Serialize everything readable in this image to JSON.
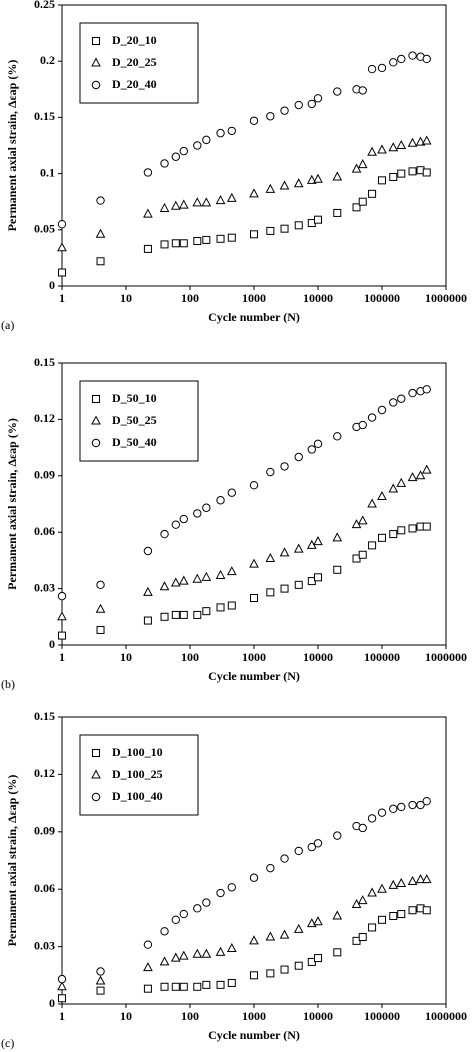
{
  "chart_data": [
    {
      "type": "scatter",
      "panel_label": "(a)",
      "x_label": "Cycle number (N)",
      "y_label": "Permanent axial strain, Δεap (%)",
      "log_x": true,
      "xlim": [
        1,
        1000000
      ],
      "xticks": [
        1,
        10,
        100,
        1000,
        10000,
        100000,
        1000000
      ],
      "ylim": [
        0,
        0.25
      ],
      "yticks": [
        0,
        0.05,
        0.1,
        0.15,
        0.2,
        0.25
      ],
      "legend": "upper left",
      "x": [
        1,
        4,
        22,
        40,
        60,
        80,
        130,
        180,
        300,
        450,
        1000,
        1800,
        3000,
        5000,
        8000,
        10000,
        20000,
        40000,
        50000,
        70000,
        100000,
        150000,
        200000,
        300000,
        400000,
        500000
      ],
      "series": [
        {
          "name": "D_20_10",
          "marker": "square",
          "color": "#000000",
          "values": [
            0.012,
            0.022,
            0.033,
            0.037,
            0.038,
            0.038,
            0.04,
            0.041,
            0.042,
            0.043,
            0.046,
            0.049,
            0.051,
            0.054,
            0.056,
            0.059,
            0.065,
            0.07,
            0.075,
            0.082,
            0.094,
            0.097,
            0.1,
            0.102,
            0.103,
            0.101
          ]
        },
        {
          "name": "D_20_25",
          "marker": "triangle",
          "color": "#000000",
          "values": [
            0.034,
            0.046,
            0.064,
            0.069,
            0.071,
            0.072,
            0.074,
            0.074,
            0.076,
            0.078,
            0.082,
            0.086,
            0.089,
            0.091,
            0.094,
            0.095,
            0.097,
            0.104,
            0.108,
            0.119,
            0.121,
            0.123,
            0.125,
            0.127,
            0.128,
            0.129
          ]
        },
        {
          "name": "D_20_40",
          "marker": "circle",
          "color": "#000000",
          "values": [
            0.055,
            0.076,
            0.101,
            0.109,
            0.115,
            0.12,
            0.125,
            0.13,
            0.136,
            0.138,
            0.147,
            0.151,
            0.156,
            0.161,
            0.162,
            0.167,
            0.173,
            0.175,
            0.174,
            0.193,
            0.194,
            0.199,
            0.202,
            0.205,
            0.204,
            0.202
          ]
        }
      ]
    },
    {
      "type": "scatter",
      "panel_label": "(b)",
      "x_label": "Cycle number (N)",
      "y_label": "Permanent axial strain, Δεap (%)",
      "log_x": true,
      "xlim": [
        1,
        1000000
      ],
      "xticks": [
        1,
        10,
        100,
        1000,
        10000,
        100000,
        1000000
      ],
      "ylim": [
        0,
        0.15
      ],
      "yticks": [
        0,
        0.03,
        0.06,
        0.09,
        0.12,
        0.15
      ],
      "legend": "upper left",
      "x": [
        1,
        4,
        22,
        40,
        60,
        80,
        130,
        180,
        300,
        450,
        1000,
        1800,
        3000,
        5000,
        8000,
        10000,
        20000,
        40000,
        50000,
        70000,
        100000,
        150000,
        200000,
        300000,
        400000,
        500000
      ],
      "series": [
        {
          "name": "D_50_10",
          "marker": "square",
          "color": "#000000",
          "values": [
            0.005,
            0.008,
            0.013,
            0.015,
            0.016,
            0.016,
            0.016,
            0.018,
            0.02,
            0.021,
            0.025,
            0.028,
            0.03,
            0.032,
            0.034,
            0.036,
            0.04,
            0.046,
            0.048,
            0.053,
            0.057,
            0.059,
            0.061,
            0.062,
            0.063,
            0.063
          ]
        },
        {
          "name": "D_50_25",
          "marker": "triangle",
          "color": "#000000",
          "values": [
            0.015,
            0.019,
            0.028,
            0.031,
            0.033,
            0.034,
            0.035,
            0.036,
            0.037,
            0.039,
            0.043,
            0.046,
            0.049,
            0.051,
            0.053,
            0.055,
            0.057,
            0.064,
            0.066,
            0.075,
            0.079,
            0.083,
            0.086,
            0.089,
            0.09,
            0.093
          ]
        },
        {
          "name": "D_50_40",
          "marker": "circle",
          "color": "#000000",
          "values": [
            0.026,
            0.032,
            0.05,
            0.059,
            0.064,
            0.067,
            0.07,
            0.073,
            0.077,
            0.081,
            0.085,
            0.092,
            0.095,
            0.1,
            0.104,
            0.107,
            0.111,
            0.116,
            0.117,
            0.121,
            0.125,
            0.129,
            0.131,
            0.134,
            0.135,
            0.136
          ]
        }
      ]
    },
    {
      "type": "scatter",
      "panel_label": "(c)",
      "x_label": "Cycle number (N)",
      "y_label": "Permanent axial strain, Δεap (%)",
      "log_x": true,
      "xlim": [
        1,
        1000000
      ],
      "xticks": [
        1,
        10,
        100,
        1000,
        10000,
        100000,
        1000000
      ],
      "ylim": [
        0,
        0.15
      ],
      "yticks": [
        0,
        0.03,
        0.06,
        0.09,
        0.12,
        0.15
      ],
      "legend": "upper left",
      "x": [
        1,
        4,
        22,
        40,
        60,
        80,
        130,
        180,
        300,
        450,
        1000,
        1800,
        3000,
        5000,
        8000,
        10000,
        20000,
        40000,
        50000,
        70000,
        100000,
        150000,
        200000,
        300000,
        400000,
        500000
      ],
      "series": [
        {
          "name": "D_100_10",
          "marker": "square",
          "color": "#000000",
          "values": [
            0.003,
            0.007,
            0.008,
            0.009,
            0.009,
            0.009,
            0.009,
            0.01,
            0.01,
            0.011,
            0.015,
            0.016,
            0.018,
            0.02,
            0.022,
            0.024,
            0.027,
            0.033,
            0.035,
            0.04,
            0.044,
            0.046,
            0.047,
            0.049,
            0.05,
            0.049
          ]
        },
        {
          "name": "D_100_25",
          "marker": "triangle",
          "color": "#000000",
          "values": [
            0.009,
            0.012,
            0.019,
            0.022,
            0.024,
            0.025,
            0.026,
            0.026,
            0.027,
            0.029,
            0.033,
            0.035,
            0.036,
            0.039,
            0.042,
            0.043,
            0.046,
            0.052,
            0.054,
            0.058,
            0.06,
            0.062,
            0.063,
            0.064,
            0.065,
            0.065
          ]
        },
        {
          "name": "D_100_40",
          "marker": "circle",
          "color": "#000000",
          "values": [
            0.013,
            0.017,
            0.031,
            0.038,
            0.044,
            0.047,
            0.05,
            0.053,
            0.058,
            0.061,
            0.066,
            0.071,
            0.076,
            0.08,
            0.082,
            0.084,
            0.088,
            0.093,
            0.092,
            0.097,
            0.1,
            0.102,
            0.103,
            0.104,
            0.104,
            0.106
          ]
        }
      ]
    }
  ]
}
